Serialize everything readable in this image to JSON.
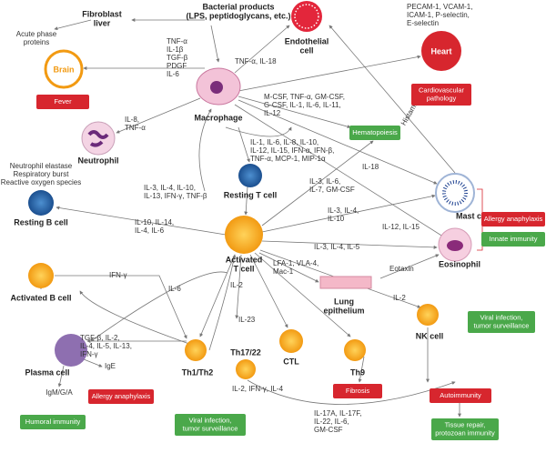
{
  "cells": [
    [
      "Bacterial products",
      "(LPS, peptidoglycans, etc.)"
    ],
    [
      "Endothelial",
      "cell"
    ],
    [
      "Macrophage"
    ],
    [
      "Neutrophil"
    ],
    [
      "Resting T cell"
    ],
    [
      "Resting B cell"
    ],
    [
      "Activated",
      "T cell"
    ],
    [
      "Mast cell"
    ],
    [
      "Eosinophil"
    ],
    [
      "Activated B cell"
    ],
    [
      "Lung",
      "epithelium"
    ],
    [
      "NK cell"
    ],
    [
      "Plasma cell"
    ],
    [
      "Th1/Th2"
    ],
    [
      "Th17/22"
    ],
    [
      "CTL"
    ],
    [
      "Th9"
    ],
    [
      "Fibroblast",
      "liver"
    ],
    [
      "Brain"
    ],
    [
      "Heart"
    ]
  ],
  "mediators": [
    [
      "PECAM-1, VCAM-1,",
      "ICAM-1, P-selectin,",
      "E-selectin"
    ],
    [
      "Acute phase",
      "proteins"
    ],
    [
      "TNF-α",
      "IL-1β",
      "TGF-β",
      "PDGF",
      "IL-6"
    ],
    [
      "TNF-α, IL-18"
    ],
    [
      "M-CSF, TNF-α, GM-CSF,",
      "G-CSF, IL-1, IL-6, IL-11,",
      "IL-12"
    ],
    [
      "Histamine"
    ],
    [
      "IL-8,",
      "TNF-α"
    ],
    [
      "Neutrophil elastase",
      "Respiratory burst",
      "Reactive oxygen species"
    ],
    [
      "IL-1, IL-6, IL-8, IL-10,",
      "IL-12, IL-15, IFN-α, IFN-β,",
      "TNF-α, MCP-1, MIP-1α"
    ],
    [
      "IL-18"
    ],
    [
      "IL-3, IL-4, IL-10,",
      "IL-13, IFN-γ, TNF-β"
    ],
    [
      "IL-3, IL-6,",
      "IL-7, GM-CSF"
    ],
    [
      "IL-10, IL-14,",
      "IL-4, IL-6"
    ],
    [
      "IL-3, IL-4,",
      "IL-10"
    ],
    [
      "IL-12, IL-15"
    ],
    [
      "IL-3, IL-4, IL-5"
    ],
    [
      "Eotaxin"
    ],
    [
      "LFA-1, VLA-4,",
      "Mac-1"
    ],
    [
      "IFN-γ"
    ],
    [
      "IL-2"
    ],
    [
      "IL-6"
    ],
    [
      "IL-2"
    ],
    [
      "IL-23"
    ],
    [
      "TGF-β, IL-2,",
      "IL-4, IL-5, IL-13,",
      "IFN-γ"
    ],
    [
      "IgE"
    ],
    [
      "IgM/G/A"
    ],
    [
      "IL-2, IFN-γ, IL-4"
    ],
    [
      "IL-17A, IL-17F,",
      "IL-22, IL-6,",
      "GM-CSF"
    ]
  ],
  "outcomes": [
    {
      "label": [
        "Fever"
      ],
      "color": "#d7262e"
    },
    {
      "label": [
        "Cardiovascular",
        "pathology"
      ],
      "color": "#d7262e"
    },
    {
      "label": [
        "Hematopoiesis"
      ],
      "color": "#4aa84a"
    },
    {
      "label": [
        "Allergy anaphylaxis"
      ],
      "color": "#d7262e"
    },
    {
      "label": [
        "Innate immunity"
      ],
      "color": "#4aa84a"
    },
    {
      "label": [
        "Viral infection,",
        "tumor surveillance"
      ],
      "color": "#4aa84a"
    },
    {
      "label": [
        "Allergy anaphylaxis"
      ],
      "color": "#d7262e"
    },
    {
      "label": [
        "Fibrosis"
      ],
      "color": "#d7262e"
    },
    {
      "label": [
        "Autoimmunity"
      ],
      "color": "#d7262e"
    },
    {
      "label": [
        "Humoral immunity"
      ],
      "color": "#4aa84a"
    },
    {
      "label": [
        "Viral infection,",
        "tumor surveillance"
      ],
      "color": "#4aa84a"
    },
    {
      "label": [
        "Tissue repair,",
        "protozoan immunity"
      ],
      "color": "#4aa84a"
    }
  ]
}
